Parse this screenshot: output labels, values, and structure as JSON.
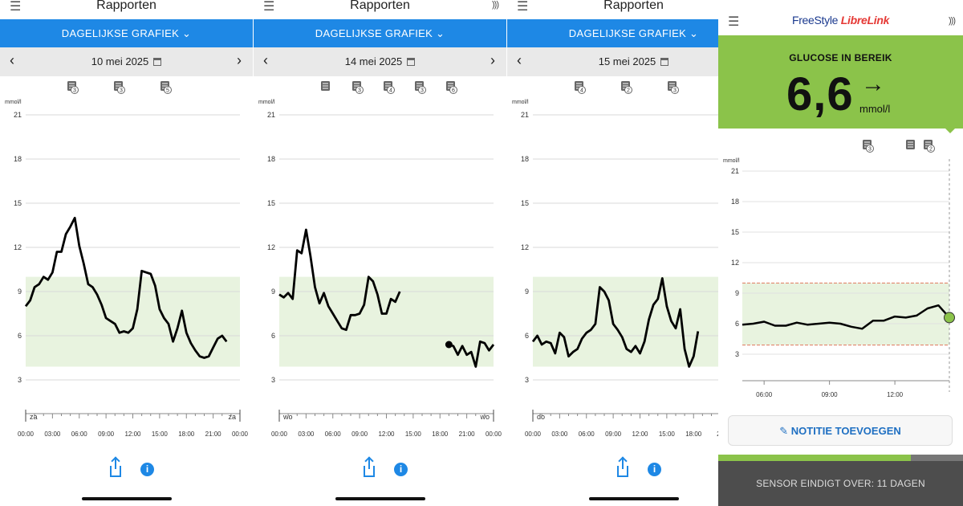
{
  "panels": [
    {
      "title": "Rapporten",
      "report_selector": "DAGELIJKSE GRAFIEK",
      "date": "10 mei 2025",
      "unit": "mmol/l",
      "day_start": "za",
      "day_end": "za",
      "x_ticks": [
        "00:00",
        "03:00",
        "06:00",
        "09:00",
        "12:00",
        "15:00",
        "18:00",
        "21:00",
        "00:00"
      ],
      "note_badges": [
        "3",
        "3",
        "5"
      ]
    },
    {
      "title": "Rapporten",
      "report_selector": "DAGELIJKSE GRAFIEK",
      "date": "14 mei 2025",
      "unit": "mmol/l",
      "day_start": "wo",
      "day_end": "wo",
      "x_ticks": [
        "00:00",
        "03:00",
        "06:00",
        "09:00",
        "12:00",
        "15:00",
        "18:00",
        "21:00",
        "00:00"
      ],
      "note_badges": [
        "",
        "3",
        "4",
        "3",
        "6"
      ]
    },
    {
      "title": "Rapporten",
      "report_selector": "DAGELIJKSE GRAFIEK",
      "date": "15 mei 2025",
      "unit": "mmol/l",
      "day_start": "do",
      "x_ticks": [
        "00:00",
        "03:00",
        "06:00",
        "09:00",
        "12:00",
        "15:00",
        "18:00",
        "21"
      ],
      "note_badges": [
        "4",
        "2",
        "3"
      ]
    }
  ],
  "live": {
    "brand_a": "FreeStyle",
    "brand_b": "LibreLink",
    "status": "GLUCOSE IN BEREIK",
    "value": "6,6",
    "unit": "mmol/l",
    "trend": "→",
    "chart_unit": "mmol/l",
    "x_ticks": [
      "06:00",
      "09:00",
      "12:00"
    ],
    "note_badges": [
      "3",
      "",
      "2"
    ],
    "add_note": "NOTITIE TOEVOEGEN",
    "sensor": "SENSOR EINDIGT OVER: 11 DAGEN"
  },
  "y_ticks": [
    "21",
    "18",
    "15",
    "12",
    "9",
    "6",
    "3"
  ],
  "colors": {
    "blue": "#1e88e5",
    "green": "#8bc34a",
    "range": "#e8f3df",
    "sensor": "#4d4d4d"
  },
  "chart_data": [
    {
      "type": "line",
      "title": "",
      "xlabel": "",
      "ylabel": "mmol/l",
      "xlim": [
        0,
        24
      ],
      "ylim": [
        0,
        22
      ],
      "target_range": [
        3.9,
        10
      ],
      "x": [
        0,
        0.5,
        1,
        1.5,
        2,
        2.5,
        3,
        3.5,
        4,
        4.5,
        5,
        5.5,
        6,
        6.5,
        7,
        7.5,
        8,
        8.5,
        9,
        9.5,
        10,
        10.5,
        11,
        11.5,
        12,
        12.5,
        13,
        13.5,
        14,
        14.5,
        15,
        15.5,
        16,
        16.5,
        17,
        17.5,
        18,
        18.5,
        19,
        19.5,
        20,
        20.5,
        21,
        21.5,
        22,
        22.5,
        23,
        23.5,
        24
      ],
      "y": [
        8,
        8.4,
        9.3,
        9.5,
        10,
        9.8,
        10.3,
        11.7,
        11.7,
        12.9,
        13.4,
        14,
        12.1,
        10.9,
        9.5,
        9.3,
        8.8,
        8.1,
        7.2,
        7,
        6.8,
        6.2,
        6.3,
        6.2,
        6.5,
        7.8,
        10.4,
        10.3,
        10.2,
        9.4,
        7.8,
        7.2,
        6.8,
        5.6,
        6.5,
        7.7,
        6.2,
        5.5,
        5,
        4.6,
        4.5,
        4.6,
        5.2,
        5.8,
        6,
        5.6,
        null,
        null,
        null
      ]
    },
    {
      "type": "line",
      "title": "",
      "xlabel": "",
      "ylabel": "mmol/l",
      "xlim": [
        0,
        24
      ],
      "ylim": [
        0,
        22
      ],
      "target_range": [
        3.9,
        10
      ],
      "x": [
        0,
        0.5,
        1,
        1.5,
        2,
        2.5,
        3,
        3.5,
        4,
        4.5,
        5,
        5.5,
        6,
        6.5,
        7,
        7.5,
        8,
        8.5,
        9,
        9.5,
        10,
        10.5,
        11,
        11.5,
        12,
        12.5,
        13,
        13.5,
        14,
        14.5,
        15,
        15.5,
        16,
        16.5,
        19,
        19.5,
        20,
        20.5,
        21,
        21.5,
        22,
        22.5,
        23,
        23.5,
        24
      ],
      "y": [
        8.8,
        8.6,
        8.9,
        8.5,
        11.8,
        11.6,
        13.2,
        11.4,
        9.3,
        8.2,
        8.9,
        8,
        7.5,
        7,
        6.5,
        6.4,
        7.4,
        7.4,
        7.5,
        8.1,
        10,
        9.7,
        8.8,
        7.5,
        7.5,
        8.5,
        8.3,
        9,
        null,
        null,
        null,
        null,
        null,
        null,
        5.4,
        5.3,
        4.7,
        5.3,
        4.7,
        4.9,
        3.9,
        5.6,
        5.5,
        5,
        5.4
      ]
    },
    {
      "type": "line",
      "title": "",
      "xlabel": "",
      "ylabel": "mmol/l",
      "xlim": [
        0,
        24
      ],
      "ylim": [
        0,
        22
      ],
      "target_range": [
        3.9,
        10
      ],
      "x": [
        0,
        0.5,
        1,
        1.5,
        2,
        2.5,
        3,
        3.5,
        4,
        4.5,
        5,
        5.5,
        6,
        6.5,
        7,
        7.5,
        8,
        8.5,
        9,
        9.5,
        10,
        10.5,
        11,
        11.5,
        12,
        12.5,
        13,
        13.5,
        14,
        14.5,
        15,
        15.5,
        16,
        16.5,
        17,
        17.5,
        18,
        18.5,
        19,
        19.5,
        20,
        20.5,
        21,
        21.5,
        22,
        22.5,
        23,
        23.5,
        24
      ],
      "y": [
        5.6,
        6,
        5.4,
        5.6,
        5.5,
        4.8,
        6.2,
        5.9,
        4.6,
        4.9,
        5.1,
        5.8,
        6.2,
        6.4,
        6.8,
        9.3,
        9,
        8.4,
        6.8,
        6.4,
        5.9,
        5.1,
        4.9,
        5.3,
        4.8,
        5.6,
        7.1,
        8.1,
        8.5,
        9.9,
        8,
        7,
        6.5,
        7.8,
        5.1,
        3.9,
        4.6,
        6.3,
        null,
        null,
        null,
        null,
        null,
        null,
        null,
        null,
        null,
        null,
        null
      ]
    },
    {
      "type": "line",
      "title": "",
      "xlabel": "",
      "ylabel": "mmol/l",
      "xlim": [
        5,
        14.5
      ],
      "ylim": [
        0,
        22
      ],
      "target_range": [
        3.9,
        10
      ],
      "x": [
        5,
        5.5,
        6,
        6.5,
        7,
        7.5,
        8,
        8.5,
        9,
        9.5,
        10,
        10.5,
        11,
        11.5,
        12,
        12.5,
        13,
        13.5,
        14,
        14.5
      ],
      "y": [
        5.9,
        6,
        6.2,
        5.8,
        5.8,
        6.1,
        5.9,
        6,
        6.1,
        6,
        5.7,
        5.5,
        6.3,
        6.3,
        6.7,
        6.6,
        6.8,
        7.5,
        7.8,
        6.6
      ]
    }
  ]
}
